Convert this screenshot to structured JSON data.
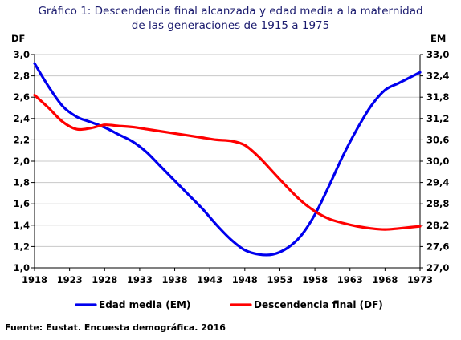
{
  "chart_data": {
    "type": "line",
    "title_line1": "Gráfico 1: Descendencia final alcanzada y edad media a la maternidad",
    "title_line2": "de las generaciones de 1915 a 1975",
    "left_axis_label": "DF",
    "right_axis_label": "EM",
    "x_ticks": [
      "1918",
      "1923",
      "1928",
      "1933",
      "1938",
      "1943",
      "1948",
      "1953",
      "1958",
      "1963",
      "1968",
      "1973"
    ],
    "y_left_ticks": [
      "1,0",
      "1,2",
      "1,4",
      "1,6",
      "1,8",
      "2,0",
      "2,2",
      "2,4",
      "2,6",
      "2,8",
      "3,0"
    ],
    "y_right_ticks": [
      "27,0",
      "27,6",
      "28,2",
      "28,8",
      "29,4",
      "30,0",
      "30,6",
      "31,2",
      "31,8",
      "32,4",
      "33,0"
    ],
    "y_left_range": [
      1.0,
      3.0
    ],
    "y_right_range": [
      27.0,
      33.0
    ],
    "x_range": [
      1918,
      1973
    ],
    "grid": "horizontal",
    "legend_position": "bottom",
    "series": [
      {
        "name": "Edad media (EM)",
        "axis": "right",
        "color": "#0000ee",
        "x": [
          1918,
          1920,
          1922,
          1924,
          1926,
          1928,
          1930,
          1932,
          1934,
          1936,
          1938,
          1940,
          1942,
          1944,
          1946,
          1948,
          1950,
          1952,
          1954,
          1956,
          1958,
          1960,
          1962,
          1964,
          1966,
          1968,
          1970,
          1973
        ],
        "values": [
          32.75,
          32.1,
          31.55,
          31.25,
          31.1,
          30.95,
          30.75,
          30.55,
          30.25,
          29.85,
          29.45,
          29.05,
          28.65,
          28.2,
          27.8,
          27.5,
          27.38,
          27.38,
          27.55,
          27.9,
          28.5,
          29.3,
          30.15,
          30.9,
          31.55,
          32.0,
          32.2,
          32.5
        ]
      },
      {
        "name": "Descendencia final (DF)",
        "axis": "left",
        "color": "#ff0000",
        "x": [
          1918,
          1920,
          1922,
          1924,
          1926,
          1928,
          1930,
          1932,
          1934,
          1936,
          1938,
          1940,
          1942,
          1944,
          1946,
          1948,
          1950,
          1952,
          1954,
          1956,
          1958,
          1960,
          1962,
          1964,
          1966,
          1968,
          1970,
          1973
        ],
        "values": [
          2.62,
          2.5,
          2.37,
          2.3,
          2.31,
          2.34,
          2.33,
          2.32,
          2.3,
          2.28,
          2.26,
          2.24,
          2.22,
          2.2,
          2.19,
          2.15,
          2.04,
          1.9,
          1.76,
          1.63,
          1.53,
          1.46,
          1.42,
          1.39,
          1.37,
          1.36,
          1.37,
          1.39
        ]
      }
    ]
  },
  "source": "Fuente: Eustat.  Encuesta demográfica. 2016"
}
